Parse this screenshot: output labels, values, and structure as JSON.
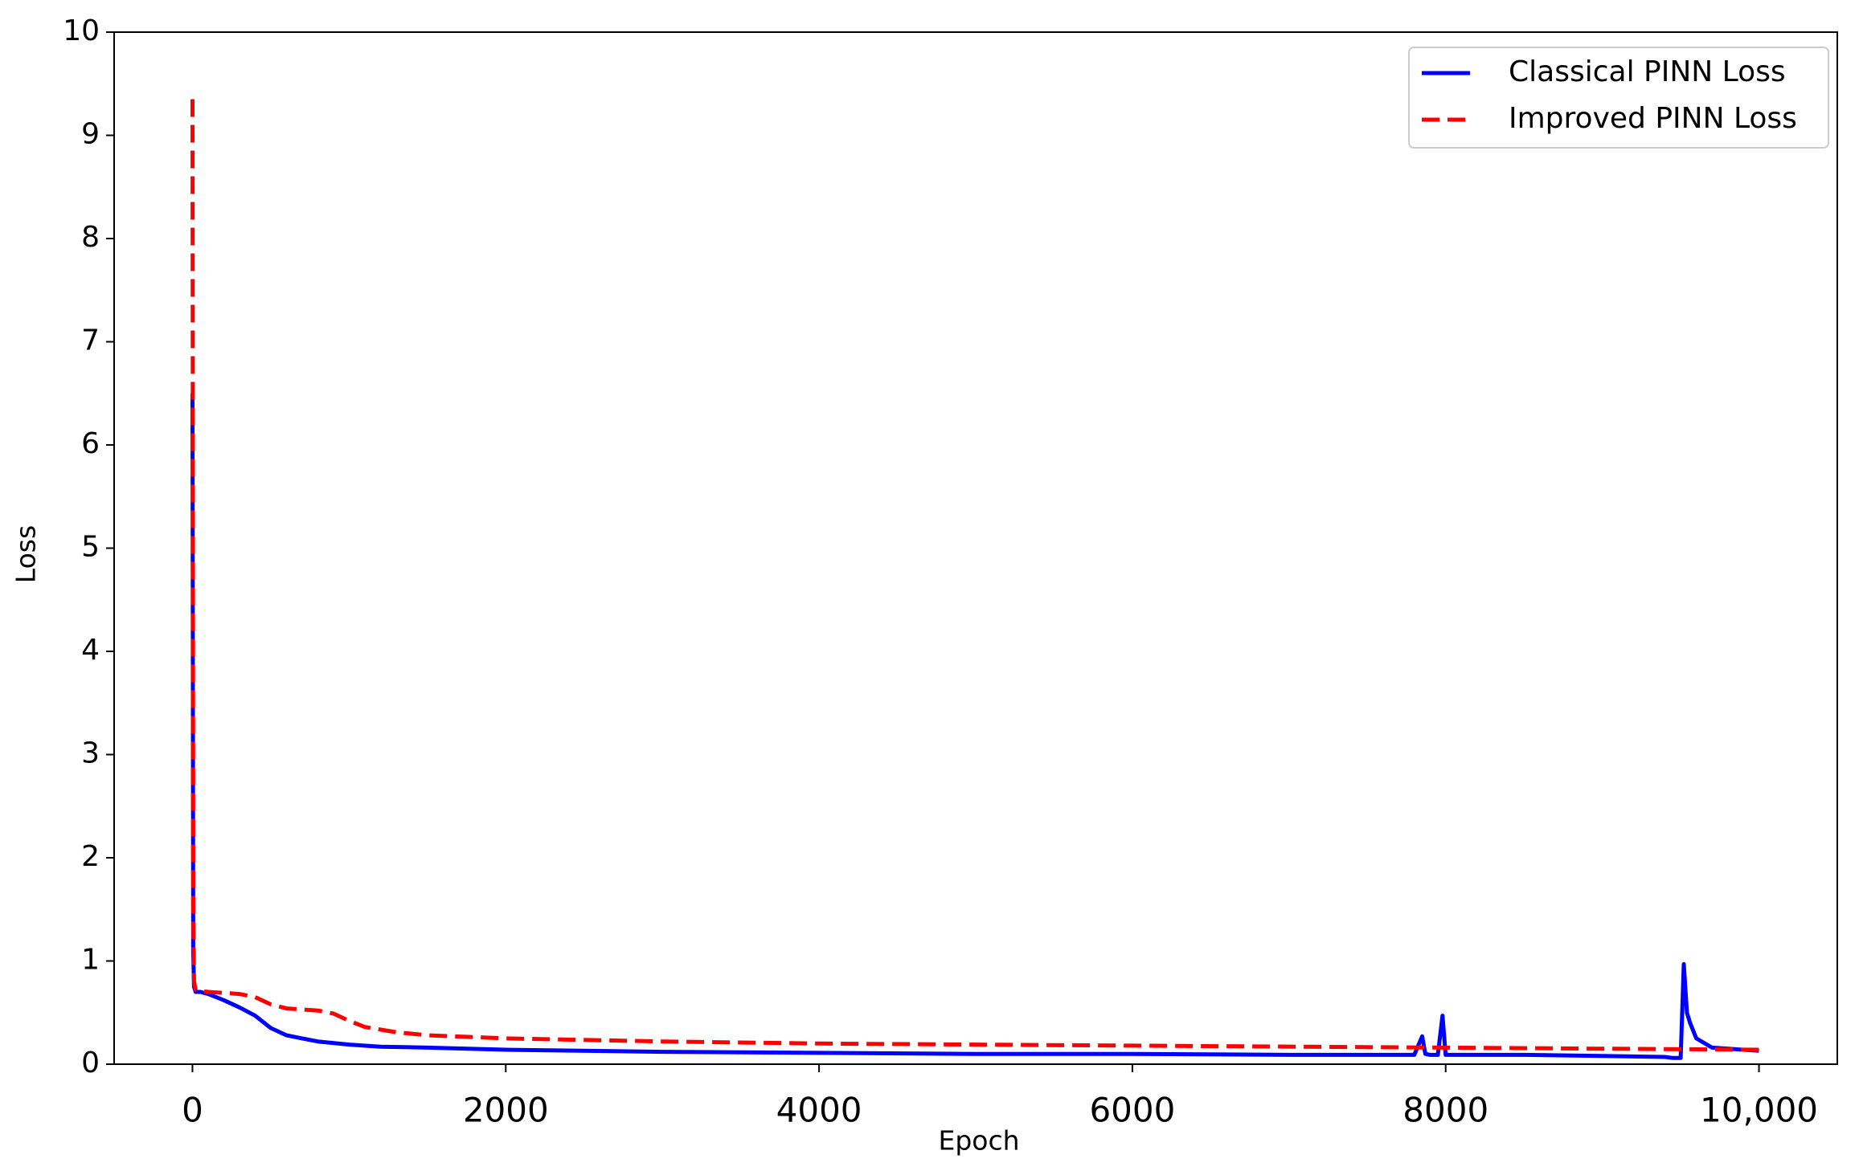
{
  "chart_data": {
    "type": "line",
    "xlabel": "Epoch",
    "ylabel": "Loss",
    "xlim": [
      -500,
      10500
    ],
    "ylim": [
      0,
      10
    ],
    "xticks": [
      0,
      2000,
      4000,
      6000,
      8000,
      {
        "value": 10000,
        "label": "10,000"
      }
    ],
    "yticks": [
      0,
      1,
      2,
      3,
      4,
      5,
      6,
      7,
      8,
      9,
      10
    ],
    "legend": "upper right",
    "series": [
      {
        "name": "Classical PINN Loss",
        "color": "#0000ff",
        "dash": "solid",
        "x": [
          0,
          5,
          10,
          20,
          50,
          100,
          200,
          300,
          400,
          500,
          600,
          700,
          800,
          1000,
          1200,
          1500,
          2000,
          3000,
          4000,
          5000,
          6000,
          7000,
          7800,
          7850,
          7870,
          7900,
          7950,
          7980,
          8000,
          8500,
          9000,
          9400,
          9450,
          9500,
          9520,
          9540,
          9560,
          9600,
          9700,
          10000
        ],
        "values": [
          6.5,
          1.1,
          0.75,
          0.7,
          0.7,
          0.68,
          0.62,
          0.55,
          0.47,
          0.35,
          0.28,
          0.25,
          0.22,
          0.19,
          0.17,
          0.16,
          0.14,
          0.12,
          0.11,
          0.1,
          0.1,
          0.09,
          0.09,
          0.27,
          0.1,
          0.09,
          0.09,
          0.47,
          0.09,
          0.09,
          0.08,
          0.07,
          0.06,
          0.06,
          0.97,
          0.5,
          0.4,
          0.25,
          0.16,
          0.13
        ]
      },
      {
        "name": "Improved PINN Loss",
        "color": "#ff0000",
        "dash": "dashed",
        "x": [
          0,
          5,
          10,
          20,
          50,
          100,
          300,
          400,
          500,
          600,
          800,
          900,
          1000,
          1100,
          1300,
          1500,
          2000,
          3000,
          4000,
          6000,
          8000,
          9000,
          10000
        ],
        "values": [
          9.35,
          1.5,
          0.8,
          0.72,
          0.71,
          0.7,
          0.68,
          0.65,
          0.58,
          0.54,
          0.52,
          0.49,
          0.42,
          0.36,
          0.31,
          0.28,
          0.25,
          0.22,
          0.2,
          0.18,
          0.16,
          0.15,
          0.14
        ]
      }
    ]
  }
}
